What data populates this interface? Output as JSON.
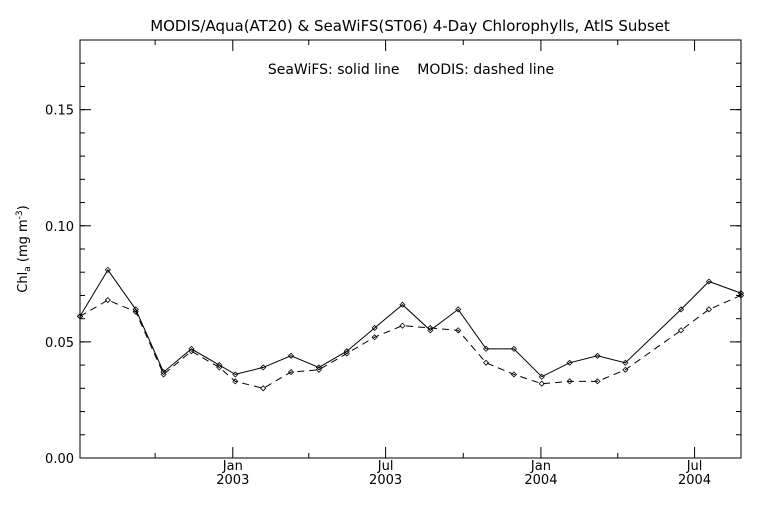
{
  "chart_data": {
    "type": "line",
    "title": "MODIS/Aqua(AT20) & SeaWiFS(ST06) 4-Day Chlorophylls, AtlS Subset",
    "annotation": "SeaWiFS: solid line    MODIS: dashed line",
    "ylabel": "Chl_a (mg m^-3)",
    "ylim": [
      0.0,
      0.18
    ],
    "xlim": [
      "2002-07-04",
      "2004-08-25"
    ],
    "y_ticks": [
      {
        "value": 0.0,
        "label": "0.00"
      },
      {
        "value": 0.05,
        "label": "0.05"
      },
      {
        "value": 0.1,
        "label": "0.10"
      },
      {
        "value": 0.15,
        "label": "0.15"
      }
    ],
    "x_ticks": [
      {
        "date": "2003-01-01",
        "month": "Jan",
        "year": "2003"
      },
      {
        "date": "2003-07-01",
        "month": "Jul",
        "year": "2003"
      },
      {
        "date": "2004-01-01",
        "month": "Jan",
        "year": "2004"
      },
      {
        "date": "2004-07-01",
        "month": "Jul",
        "year": "2004"
      }
    ],
    "grid": false,
    "series": [
      {
        "style": "solid",
        "points": [
          {
            "x": "2002-07-04",
            "y": 0.061
          },
          {
            "x": "2002-08-06",
            "y": 0.081
          },
          {
            "x": "2002-09-08",
            "y": 0.064
          },
          {
            "x": "2002-10-11",
            "y": 0.037
          },
          {
            "x": "2002-11-13",
            "y": 0.047
          },
          {
            "x": "2002-12-16",
            "y": 0.04
          },
          {
            "x": "2003-01-04",
            "y": 0.036
          },
          {
            "x": "2003-02-06",
            "y": 0.039
          },
          {
            "x": "2003-03-11",
            "y": 0.044
          },
          {
            "x": "2003-04-13",
            "y": 0.039
          },
          {
            "x": "2003-05-16",
            "y": 0.046
          },
          {
            "x": "2003-06-18",
            "y": 0.056
          },
          {
            "x": "2003-07-21",
            "y": 0.066
          },
          {
            "x": "2003-08-23",
            "y": 0.055
          },
          {
            "x": "2003-09-25",
            "y": 0.064
          },
          {
            "x": "2003-10-28",
            "y": 0.047
          },
          {
            "x": "2003-11-30",
            "y": 0.047
          },
          {
            "x": "2004-01-02",
            "y": 0.035
          },
          {
            "x": "2004-02-04",
            "y": 0.041
          },
          {
            "x": "2004-03-08",
            "y": 0.044
          },
          {
            "x": "2004-04-10",
            "y": 0.041
          },
          {
            "x": "2004-06-15",
            "y": 0.064
          },
          {
            "x": "2004-07-18",
            "y": 0.076
          },
          {
            "x": "2004-08-25",
            "y": 0.071
          }
        ]
      },
      {
        "style": "dashed",
        "points": [
          {
            "x": "2002-07-04",
            "y": 0.061
          },
          {
            "x": "2002-08-06",
            "y": 0.068
          },
          {
            "x": "2002-09-08",
            "y": 0.063
          },
          {
            "x": "2002-10-11",
            "y": 0.036
          },
          {
            "x": "2002-11-13",
            "y": 0.046
          },
          {
            "x": "2002-12-16",
            "y": 0.039
          },
          {
            "x": "2003-01-04",
            "y": 0.033
          },
          {
            "x": "2003-02-06",
            "y": 0.03
          },
          {
            "x": "2003-03-11",
            "y": 0.037
          },
          {
            "x": "2003-04-13",
            "y": 0.038
          },
          {
            "x": "2003-05-16",
            "y": 0.045
          },
          {
            "x": "2003-06-18",
            "y": 0.052
          },
          {
            "x": "2003-07-21",
            "y": 0.057
          },
          {
            "x": "2003-08-23",
            "y": 0.056
          },
          {
            "x": "2003-09-25",
            "y": 0.055
          },
          {
            "x": "2003-10-28",
            "y": 0.041
          },
          {
            "x": "2003-11-30",
            "y": 0.036
          },
          {
            "x": "2004-01-02",
            "y": 0.032
          },
          {
            "x": "2004-02-04",
            "y": 0.033
          },
          {
            "x": "2004-03-08",
            "y": 0.033
          },
          {
            "x": "2004-04-10",
            "y": 0.038
          },
          {
            "x": "2004-06-15",
            "y": 0.055
          },
          {
            "x": "2004-07-18",
            "y": 0.064
          },
          {
            "x": "2004-08-25",
            "y": 0.07
          }
        ]
      }
    ]
  }
}
